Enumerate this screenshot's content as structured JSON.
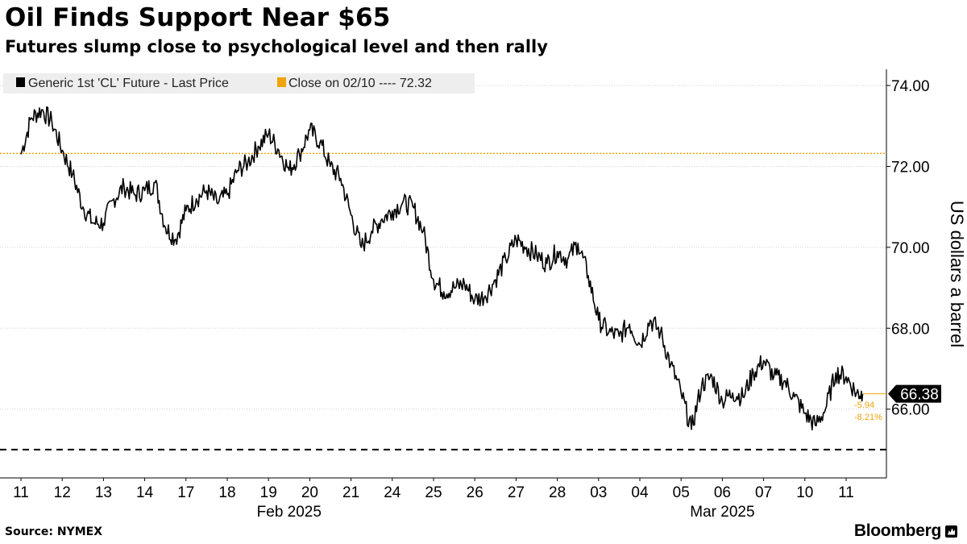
{
  "title": "Oil Finds Support Near $65",
  "subtitle": "Futures slump close to psychological level and then rally",
  "source": "Source: NYMEX",
  "brand": "Bloomberg",
  "colors": {
    "price_line": "#000000",
    "reference_line": "#f0a30a",
    "support_line": "#000000",
    "grid": "#d0d0d0",
    "legend_bg": "#eeeeee"
  },
  "chart_data": {
    "type": "line",
    "legend": [
      {
        "label": "Generic 1st 'CL' Future - Last Price",
        "color": "#000000"
      },
      {
        "label": "Close on 02/10 ---- 72.32",
        "color": "#f0a30a"
      }
    ],
    "ylabel": "US dollars a barrel",
    "ylim": [
      64.3,
      74.4
    ],
    "yticks": [
      66,
      68,
      70,
      72,
      74
    ],
    "ytick_labels": [
      "66.00",
      "68.00",
      "70.00",
      "72.00",
      "74.00"
    ],
    "grid": true,
    "x_categories": [
      "11",
      "12",
      "13",
      "14",
      "17",
      "18",
      "19",
      "20",
      "21",
      "24",
      "25",
      "26",
      "27",
      "28",
      "03",
      "04",
      "05",
      "06",
      "07",
      "10",
      "11"
    ],
    "x_groups": [
      {
        "label": "Feb 2025",
        "start": 0,
        "end": 13
      },
      {
        "label": "Mar 2025",
        "start": 14,
        "end": 20
      }
    ],
    "reference_line": {
      "value": 72.32,
      "label": "Close on 02/10"
    },
    "support_line": {
      "value": 65.0
    },
    "last_value": 66.38,
    "last_value_label": "66.38",
    "change_labels": [
      "-5.94",
      "-8.21%"
    ],
    "x": [
      0,
      0.25,
      0.5,
      0.75,
      1,
      1.25,
      1.5,
      1.75,
      2,
      2.25,
      2.5,
      2.75,
      3,
      3.25,
      3.5,
      3.75,
      4,
      4.25,
      4.5,
      4.75,
      5,
      5.25,
      5.5,
      5.75,
      6,
      6.25,
      6.5,
      6.75,
      7,
      7.25,
      7.5,
      7.75,
      8,
      8.25,
      8.5,
      8.75,
      9,
      9.25,
      9.5,
      9.75,
      10,
      10.25,
      10.5,
      10.75,
      11,
      11.25,
      11.5,
      11.75,
      12,
      12.25,
      12.5,
      12.75,
      13,
      13.25,
      13.5,
      13.75,
      14,
      14.25,
      14.5,
      14.75,
      15,
      15.25,
      15.5,
      15.75,
      16,
      16.25,
      16.5,
      16.75,
      17,
      17.25,
      17.5,
      17.75,
      18,
      18.25,
      18.5,
      18.75,
      19,
      19.25,
      19.5,
      19.75,
      20,
      20.25,
      20.4
    ],
    "y": [
      72.3,
      73.2,
      73.4,
      73.1,
      72.4,
      71.8,
      71.0,
      70.6,
      70.6,
      71.2,
      71.5,
      71.3,
      71.4,
      71.6,
      70.5,
      70.2,
      70.9,
      71.2,
      71.4,
      71.1,
      71.3,
      71.9,
      72.1,
      72.5,
      72.8,
      72.4,
      71.9,
      72.3,
      72.9,
      72.6,
      72.0,
      71.7,
      70.8,
      70.0,
      70.4,
      70.7,
      70.9,
      71.1,
      71.0,
      70.4,
      69.2,
      68.9,
      69.0,
      69.1,
      68.7,
      68.8,
      69.2,
      69.7,
      70.2,
      70.0,
      69.8,
      69.6,
      69.9,
      69.7,
      70.1,
      69.3,
      68.2,
      67.9,
      67.8,
      68.1,
      67.6,
      68.2,
      67.9,
      67.1,
      66.4,
      65.5,
      66.6,
      66.8,
      66.2,
      66.4,
      66.3,
      66.9,
      67.2,
      66.8,
      66.7,
      66.3,
      65.9,
      65.6,
      66.0,
      66.9,
      66.8,
      66.4,
      66.38
    ]
  }
}
